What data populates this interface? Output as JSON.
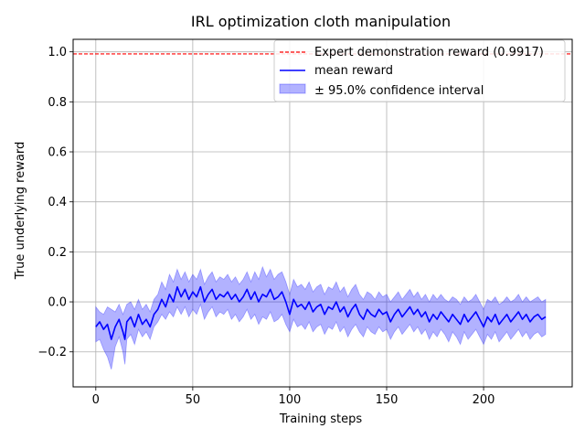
{
  "chart_data": {
    "type": "line",
    "title": "IRL optimization cloth manipulation",
    "xlabel": "Training steps",
    "ylabel": "True underlying reward",
    "xlim": [
      -11.7,
      245.7
    ],
    "ylim": [
      -0.34,
      1.05
    ],
    "xticks": [
      0,
      50,
      100,
      150,
      200
    ],
    "yticks": [
      -0.2,
      0.0,
      0.2,
      0.4,
      0.6,
      0.8,
      1.0
    ],
    "xtick_labels": [
      "0",
      "50",
      "100",
      "150",
      "200"
    ],
    "ytick_labels": [
      "−0.2",
      "0.0",
      "0.2",
      "0.4",
      "0.6",
      "0.8",
      "1.0"
    ],
    "grid": true,
    "legend_position": "top-right",
    "expert_reward": 0.9917,
    "series": [
      {
        "name": "Expert demonstration reward (0.9917)",
        "kind": "hline",
        "color": "#ff0000",
        "style": "dashed"
      },
      {
        "name": "mean reward",
        "kind": "line",
        "color": "#0000ff",
        "x": [
          0,
          2,
          4,
          6,
          8,
          10,
          12,
          14,
          15,
          16,
          18,
          20,
          22,
          24,
          26,
          28,
          30,
          32,
          34,
          36,
          38,
          40,
          42,
          44,
          46,
          48,
          50,
          52,
          54,
          56,
          58,
          60,
          62,
          64,
          66,
          68,
          70,
          72,
          74,
          76,
          78,
          80,
          82,
          84,
          86,
          88,
          90,
          92,
          94,
          96,
          98,
          100,
          102,
          104,
          106,
          108,
          110,
          112,
          114,
          116,
          118,
          120,
          122,
          124,
          126,
          128,
          130,
          132,
          134,
          136,
          138,
          140,
          142,
          144,
          146,
          148,
          150,
          152,
          154,
          156,
          158,
          160,
          162,
          164,
          166,
          168,
          170,
          172,
          174,
          176,
          178,
          180,
          182,
          184,
          186,
          188,
          190,
          192,
          194,
          196,
          198,
          200,
          202,
          204,
          206,
          208,
          210,
          212,
          214,
          216,
          218,
          220,
          222,
          224,
          226,
          228,
          230,
          232
        ],
        "y": [
          -0.1,
          -0.08,
          -0.11,
          -0.09,
          -0.15,
          -0.1,
          -0.07,
          -0.12,
          -0.15,
          -0.08,
          -0.06,
          -0.1,
          -0.05,
          -0.09,
          -0.07,
          -0.1,
          -0.05,
          -0.03,
          0.01,
          -0.02,
          0.03,
          0.0,
          0.06,
          0.02,
          0.05,
          0.01,
          0.04,
          0.02,
          0.06,
          0.0,
          0.03,
          0.05,
          0.01,
          0.03,
          0.02,
          0.04,
          0.01,
          0.03,
          0.0,
          0.02,
          0.05,
          0.01,
          0.04,
          0.0,
          0.03,
          0.02,
          0.05,
          0.01,
          0.02,
          0.04,
          0.0,
          -0.05,
          0.01,
          -0.02,
          -0.01,
          -0.03,
          0.0,
          -0.04,
          -0.02,
          -0.01,
          -0.05,
          -0.02,
          -0.03,
          0.0,
          -0.04,
          -0.02,
          -0.06,
          -0.03,
          -0.01,
          -0.05,
          -0.07,
          -0.03,
          -0.05,
          -0.06,
          -0.03,
          -0.05,
          -0.04,
          -0.08,
          -0.05,
          -0.03,
          -0.06,
          -0.04,
          -0.02,
          -0.05,
          -0.03,
          -0.06,
          -0.04,
          -0.08,
          -0.05,
          -0.07,
          -0.04,
          -0.06,
          -0.08,
          -0.05,
          -0.07,
          -0.09,
          -0.05,
          -0.08,
          -0.06,
          -0.04,
          -0.07,
          -0.1,
          -0.06,
          -0.08,
          -0.05,
          -0.09,
          -0.07,
          -0.05,
          -0.08,
          -0.06,
          -0.04,
          -0.07,
          -0.05,
          -0.08,
          -0.06,
          -0.05,
          -0.07,
          -0.06
        ]
      },
      {
        "name": "± 95.0% confidence interval",
        "kind": "band",
        "color": "#0000ff",
        "opacity": 0.3,
        "x": [
          0,
          2,
          4,
          6,
          8,
          10,
          12,
          14,
          15,
          16,
          18,
          20,
          22,
          24,
          26,
          28,
          30,
          32,
          34,
          36,
          38,
          40,
          42,
          44,
          46,
          48,
          50,
          52,
          54,
          56,
          58,
          60,
          62,
          64,
          66,
          68,
          70,
          72,
          74,
          76,
          78,
          80,
          82,
          84,
          86,
          88,
          90,
          92,
          94,
          96,
          98,
          100,
          102,
          104,
          106,
          108,
          110,
          112,
          114,
          116,
          118,
          120,
          122,
          124,
          126,
          128,
          130,
          132,
          134,
          136,
          138,
          140,
          142,
          144,
          146,
          148,
          150,
          152,
          154,
          156,
          158,
          160,
          162,
          164,
          166,
          168,
          170,
          172,
          174,
          176,
          178,
          180,
          182,
          184,
          186,
          188,
          190,
          192,
          194,
          196,
          198,
          200,
          202,
          204,
          206,
          208,
          210,
          212,
          214,
          216,
          218,
          220,
          222,
          224,
          226,
          228,
          230,
          232
        ],
        "lower": [
          -0.16,
          -0.15,
          -0.19,
          -0.22,
          -0.27,
          -0.18,
          -0.14,
          -0.2,
          -0.25,
          -0.15,
          -0.13,
          -0.17,
          -0.11,
          -0.14,
          -0.12,
          -0.15,
          -0.1,
          -0.08,
          -0.05,
          -0.07,
          -0.04,
          -0.06,
          -0.02,
          -0.05,
          -0.02,
          -0.06,
          -0.03,
          -0.05,
          -0.01,
          -0.07,
          -0.04,
          -0.02,
          -0.06,
          -0.04,
          -0.05,
          -0.03,
          -0.07,
          -0.05,
          -0.08,
          -0.06,
          -0.03,
          -0.07,
          -0.05,
          -0.09,
          -0.06,
          -0.07,
          -0.04,
          -0.08,
          -0.07,
          -0.05,
          -0.09,
          -0.12,
          -0.07,
          -0.1,
          -0.09,
          -0.11,
          -0.08,
          -0.12,
          -0.1,
          -0.09,
          -0.13,
          -0.1,
          -0.11,
          -0.08,
          -0.12,
          -0.1,
          -0.14,
          -0.11,
          -0.09,
          -0.12,
          -0.14,
          -0.1,
          -0.12,
          -0.13,
          -0.1,
          -0.12,
          -0.11,
          -0.15,
          -0.12,
          -0.1,
          -0.13,
          -0.11,
          -0.09,
          -0.12,
          -0.1,
          -0.13,
          -0.11,
          -0.15,
          -0.12,
          -0.14,
          -0.11,
          -0.13,
          -0.16,
          -0.12,
          -0.14,
          -0.17,
          -0.12,
          -0.15,
          -0.13,
          -0.11,
          -0.14,
          -0.17,
          -0.13,
          -0.15,
          -0.12,
          -0.16,
          -0.14,
          -0.12,
          -0.15,
          -0.13,
          -0.11,
          -0.14,
          -0.12,
          -0.15,
          -0.13,
          -0.12,
          -0.14,
          -0.13
        ],
        "upper": [
          -0.02,
          -0.04,
          -0.05,
          -0.02,
          -0.03,
          -0.04,
          -0.01,
          -0.05,
          -0.03,
          -0.01,
          0.0,
          -0.03,
          0.01,
          -0.03,
          -0.01,
          -0.04,
          0.01,
          0.03,
          0.08,
          0.05,
          0.11,
          0.08,
          0.13,
          0.09,
          0.12,
          0.08,
          0.11,
          0.09,
          0.13,
          0.07,
          0.1,
          0.12,
          0.08,
          0.1,
          0.09,
          0.11,
          0.08,
          0.1,
          0.07,
          0.09,
          0.12,
          0.08,
          0.12,
          0.09,
          0.14,
          0.1,
          0.13,
          0.09,
          0.11,
          0.12,
          0.08,
          0.03,
          0.09,
          0.06,
          0.07,
          0.05,
          0.08,
          0.04,
          0.06,
          0.07,
          0.03,
          0.06,
          0.05,
          0.08,
          0.04,
          0.06,
          0.02,
          0.05,
          0.07,
          0.03,
          0.01,
          0.04,
          0.03,
          0.01,
          0.04,
          0.02,
          0.03,
          0.0,
          0.02,
          0.04,
          0.01,
          0.03,
          0.05,
          0.02,
          0.04,
          0.01,
          0.03,
          0.0,
          0.03,
          0.01,
          0.03,
          0.01,
          0.0,
          0.02,
          0.01,
          -0.01,
          0.02,
          0.0,
          0.01,
          0.03,
          0.0,
          -0.03,
          0.01,
          0.0,
          0.02,
          -0.01,
          0.0,
          0.02,
          0.0,
          0.01,
          0.03,
          0.0,
          0.02,
          0.0,
          0.01,
          0.02,
          0.0,
          0.01
        ]
      }
    ]
  },
  "legend": {
    "expert_label": "Expert demonstration reward (0.9917)",
    "mean_label": "mean reward",
    "ci_label": "± 95.0% confidence interval"
  }
}
